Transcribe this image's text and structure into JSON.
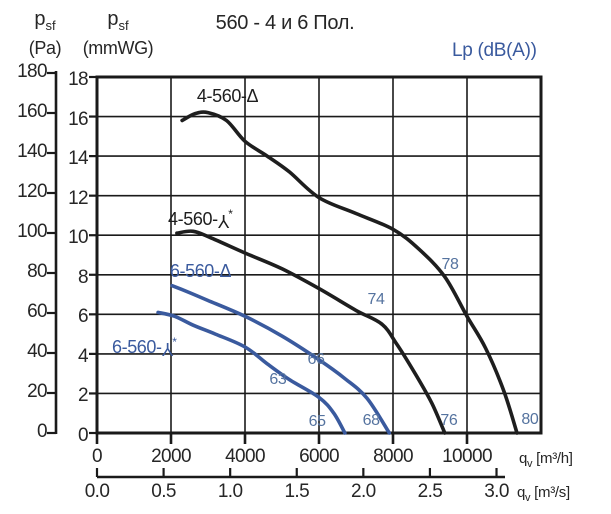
{
  "header": {
    "pressure_axis_pa": {
      "symbol": "p",
      "subscript": "sf",
      "unit": "(Pa)"
    },
    "pressure_axis_mmwg": {
      "symbol": "p",
      "subscript": "sf",
      "unit": "(mmWG)"
    },
    "title": "560 - 4 и 6 Пол.",
    "noise_legend": "Lp (dB(A))"
  },
  "colors": {
    "curve_black": "#1e1e1e",
    "curve_blue": "#3a5a9e",
    "noise_text": "#55739f",
    "grid": "#1a1a1a",
    "text": "#262626"
  },
  "chart_data": {
    "type": "line",
    "title": "560 - 4 и 6 Пол.",
    "grid": true,
    "x_axis": {
      "unit_prefix": "q",
      "unit_sub": "v",
      "unit_bracket": "[m³/h]",
      "ticks": [
        0,
        2000,
        4000,
        6000,
        8000,
        10000
      ],
      "range": [
        0,
        12000
      ],
      "grid_step": 2000
    },
    "x_axis_secondary": {
      "unit_prefix": "q",
      "unit_sub": "v",
      "unit_bracket": "[m³/s]",
      "ticks": [
        "0.0",
        "0.5",
        "1.0",
        "1.5",
        "2.0",
        "2.5",
        "3.0"
      ],
      "range": [
        0,
        3.05
      ]
    },
    "y_axis_mmwg": {
      "ticks": [
        18,
        16,
        14,
        12,
        10,
        8,
        6,
        4,
        2,
        0
      ],
      "range": [
        0,
        18
      ],
      "grid_step": 2
    },
    "y_axis_pa": {
      "ticks": [
        180,
        160,
        140,
        120,
        100,
        80,
        60,
        40,
        20,
        0
      ],
      "range": [
        0,
        180
      ]
    },
    "series": [
      {
        "id": "4-560-delta",
        "label_prefix": "4-560-",
        "symbol": "delta",
        "symbol_char": "Δ",
        "asterisk": "",
        "color_key": "curve_black",
        "label_anchor": {
          "q": 2700,
          "p_baseline": 16.63
        },
        "points": [
          [
            2300,
            15.8
          ],
          [
            2650,
            16.15
          ],
          [
            3000,
            16.2
          ],
          [
            3500,
            15.8
          ],
          [
            4000,
            14.75
          ],
          [
            4600,
            14.0
          ],
          [
            5200,
            13.2
          ],
          [
            6000,
            11.9
          ],
          [
            7000,
            11.1
          ],
          [
            8000,
            10.3
          ],
          [
            8700,
            9.3
          ],
          [
            9400,
            7.9
          ],
          [
            10000,
            5.9
          ],
          [
            10500,
            4.3
          ],
          [
            11000,
            2.1
          ],
          [
            11350,
            0
          ]
        ]
      },
      {
        "id": "4-560-wye",
        "label_prefix": "4-560-",
        "symbol": "wye",
        "symbol_char": "Y",
        "asterisk": "*",
        "color_key": "curve_black",
        "label_anchor": {
          "q": 1920,
          "p_baseline": 10.67
        },
        "points": [
          [
            2160,
            10.1
          ],
          [
            2600,
            10.2
          ],
          [
            3100,
            9.85
          ],
          [
            4000,
            9.1
          ],
          [
            5000,
            8.3
          ],
          [
            6000,
            7.3
          ],
          [
            7000,
            6.2
          ],
          [
            7700,
            5.5
          ],
          [
            8100,
            4.5
          ],
          [
            8600,
            3.0
          ],
          [
            9050,
            1.5
          ],
          [
            9400,
            0
          ]
        ]
      },
      {
        "id": "6-560-delta",
        "label_prefix": "6-560-",
        "symbol": "delta",
        "symbol_char": "Δ",
        "asterisk": "",
        "color_key": "curve_blue",
        "label_anchor": {
          "q": 1970,
          "p_baseline": 7.79
        },
        "points": [
          [
            2030,
            7.45
          ],
          [
            2500,
            7.1
          ],
          [
            3000,
            6.7
          ],
          [
            4000,
            5.9
          ],
          [
            5000,
            4.9
          ],
          [
            6000,
            3.7
          ],
          [
            6700,
            2.75
          ],
          [
            7300,
            1.75
          ],
          [
            7900,
            0
          ]
        ]
      },
      {
        "id": "6-560-wye",
        "label_prefix": "6-560-",
        "symbol": "wye",
        "symbol_char": "Y",
        "asterisk": "*",
        "color_key": "curve_blue",
        "label_anchor": {
          "q": 405,
          "p_baseline": 4.2
        },
        "points": [
          [
            1650,
            6.1
          ],
          [
            2100,
            5.9
          ],
          [
            2600,
            5.45
          ],
          [
            3200,
            5.0
          ],
          [
            4000,
            4.35
          ],
          [
            4600,
            3.5
          ],
          [
            5200,
            2.7
          ],
          [
            6000,
            1.8
          ],
          [
            6400,
            1.0
          ],
          [
            6700,
            0
          ]
        ]
      }
    ],
    "noise_labels": [
      {
        "value": "78",
        "q": 9540,
        "p": 8.5
      },
      {
        "value": "74",
        "q": 7540,
        "p": 6.7
      },
      {
        "value": "66",
        "q": 5920,
        "p": 3.7
      },
      {
        "value": "63",
        "q": 4890,
        "p": 2.7
      },
      {
        "value": "65",
        "q": 5950,
        "p": 0.55
      },
      {
        "value": "68",
        "q": 7410,
        "p": 0.6
      },
      {
        "value": "76",
        "q": 9510,
        "p": 0.6
      },
      {
        "value": "80",
        "q": 11700,
        "p": 0.65
      }
    ]
  }
}
